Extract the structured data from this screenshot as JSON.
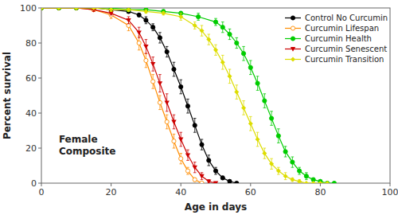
{
  "chart_data": {
    "type": "line",
    "xlabel": "Age in days",
    "ylabel": "Percent survival",
    "xlim": [
      0,
      100
    ],
    "ylim": [
      0,
      100
    ],
    "xticks": [
      0,
      20,
      40,
      60,
      80,
      100
    ],
    "yticks": [
      0,
      20,
      40,
      60,
      80,
      100
    ],
    "grid": false,
    "legend": "upper-right",
    "annotations": [
      {
        "text": "Female\nComposite",
        "x": 5,
        "y": 28
      }
    ],
    "series": [
      {
        "name": "Control No Curcumin",
        "color": "#000000",
        "marker": "circle",
        "x": [
          0,
          5,
          10,
          15,
          20,
          25,
          28,
          30,
          32,
          34,
          36,
          38,
          40,
          42,
          44,
          46,
          48,
          50,
          52,
          54,
          56
        ],
        "values": [
          100,
          100,
          100,
          100,
          99,
          98,
          96,
          93,
          89,
          83,
          75,
          65,
          55,
          44,
          33,
          22,
          13,
          7,
          3,
          1,
          0
        ],
        "errors": [
          0,
          0,
          0,
          0,
          1,
          1,
          1,
          2,
          2,
          3,
          3,
          4,
          4,
          4,
          4,
          3,
          3,
          2,
          1,
          1,
          0
        ]
      },
      {
        "name": "Curcumin Lifespan",
        "color": "#FF8C00",
        "marker": "open-circle",
        "x": [
          0,
          5,
          10,
          15,
          20,
          25,
          28,
          30,
          32,
          34,
          36,
          38,
          40,
          42,
          44,
          46
        ],
        "values": [
          100,
          100,
          100,
          99,
          96,
          90,
          80,
          70,
          58,
          46,
          35,
          24,
          14,
          7,
          2,
          0
        ],
        "errors": [
          0,
          0,
          0,
          1,
          2,
          3,
          4,
          4,
          4,
          4,
          4,
          4,
          3,
          2,
          1,
          0
        ]
      },
      {
        "name": "Curcumin Health",
        "color": "#00CC00",
        "marker": "circle",
        "x": [
          0,
          5,
          10,
          15,
          20,
          25,
          30,
          35,
          40,
          45,
          50,
          52,
          54,
          56,
          58,
          60,
          62,
          64,
          66,
          68,
          70,
          72,
          74,
          76,
          78,
          80,
          82,
          84
        ],
        "values": [
          100,
          100,
          100,
          100,
          100,
          99,
          99,
          98,
          97,
          95,
          92,
          89,
          85,
          80,
          74,
          66,
          57,
          47,
          37,
          27,
          18,
          12,
          7,
          4,
          2,
          1,
          0,
          0
        ],
        "errors": [
          0,
          0,
          0,
          0,
          0,
          1,
          1,
          1,
          1,
          2,
          2,
          3,
          3,
          3,
          4,
          4,
          4,
          4,
          4,
          4,
          3,
          3,
          2,
          2,
          1,
          1,
          0,
          0
        ]
      },
      {
        "name": "Curcumin Senescent",
        "color": "#CC0000",
        "marker": "triangle-down",
        "x": [
          0,
          5,
          10,
          15,
          20,
          25,
          28,
          30,
          32,
          34,
          36,
          38,
          40,
          42,
          44,
          46,
          48,
          50
        ],
        "values": [
          100,
          100,
          100,
          99,
          97,
          93,
          86,
          78,
          68,
          57,
          46,
          35,
          25,
          16,
          9,
          4,
          1,
          0
        ],
        "errors": [
          0,
          0,
          0,
          1,
          1,
          2,
          3,
          4,
          4,
          5,
          5,
          4,
          4,
          3,
          3,
          2,
          1,
          0
        ]
      },
      {
        "name": "Curcumin Transition",
        "color": "#DDDD00",
        "marker": "diamond",
        "x": [
          0,
          5,
          10,
          15,
          20,
          25,
          30,
          35,
          40,
          44,
          46,
          48,
          50,
          52,
          54,
          56,
          58,
          60,
          62,
          64,
          66,
          68,
          70,
          72,
          74,
          76,
          78,
          80,
          82
        ],
        "values": [
          100,
          100,
          100,
          100,
          99,
          99,
          98,
          97,
          95,
          90,
          87,
          82,
          76,
          69,
          61,
          52,
          43,
          34,
          25,
          17,
          11,
          7,
          4,
          2,
          1,
          0,
          0,
          0,
          0
        ],
        "errors": [
          0,
          0,
          0,
          0,
          1,
          1,
          1,
          1,
          2,
          2,
          3,
          3,
          3,
          4,
          4,
          4,
          4,
          4,
          4,
          3,
          3,
          2,
          2,
          1,
          1,
          0,
          0,
          0,
          0
        ]
      }
    ]
  }
}
